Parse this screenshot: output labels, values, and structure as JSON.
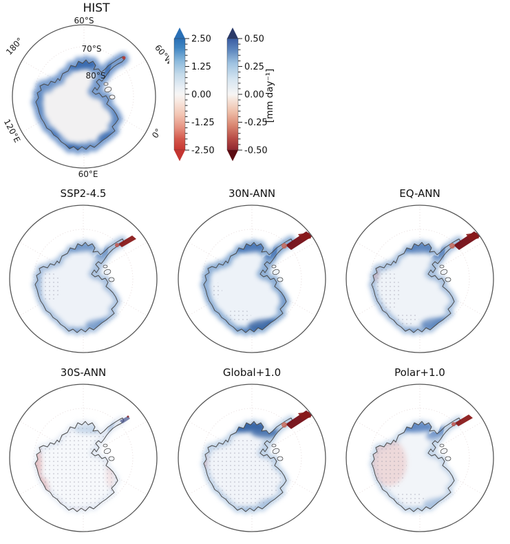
{
  "figure": {
    "background": "#ffffff",
    "hist": {
      "title": "HIST",
      "lat_labels": [
        "60°S",
        "70°S",
        "80°S"
      ],
      "lon_labels": [
        "180°",
        "120°E",
        "60°E",
        "0°",
        "60°W"
      ]
    },
    "colorbars": {
      "unit_label": "[mm day⁻¹]",
      "left": {
        "ticks": [
          "2.50",
          "1.25",
          "0.00",
          "-1.25",
          "-2.50"
        ],
        "top_color": "#2a70b6",
        "bottom_color": "#c43531"
      },
      "right": {
        "ticks": [
          "0.50",
          "0.25",
          "0.00",
          "-0.25",
          "-0.50"
        ],
        "top_color": "#2b3a68",
        "bottom_color": "#5c0c12"
      }
    },
    "panels": [
      {
        "id": "ssp245",
        "title": "SSP2-4.5"
      },
      {
        "id": "n30",
        "title": "30N-ANN"
      },
      {
        "id": "eq",
        "title": "EQ-ANN"
      },
      {
        "id": "s30",
        "title": "30S-ANN"
      },
      {
        "id": "global1",
        "title": "Global+1.0"
      },
      {
        "id": "polar1",
        "title": "Polar+1.0"
      }
    ],
    "colors": {
      "coast_outline": "#4a4a4a",
      "strong_blue": "#24549c",
      "strong_red": "#8a1a1a",
      "graticule": "#e4d8d8"
    }
  }
}
